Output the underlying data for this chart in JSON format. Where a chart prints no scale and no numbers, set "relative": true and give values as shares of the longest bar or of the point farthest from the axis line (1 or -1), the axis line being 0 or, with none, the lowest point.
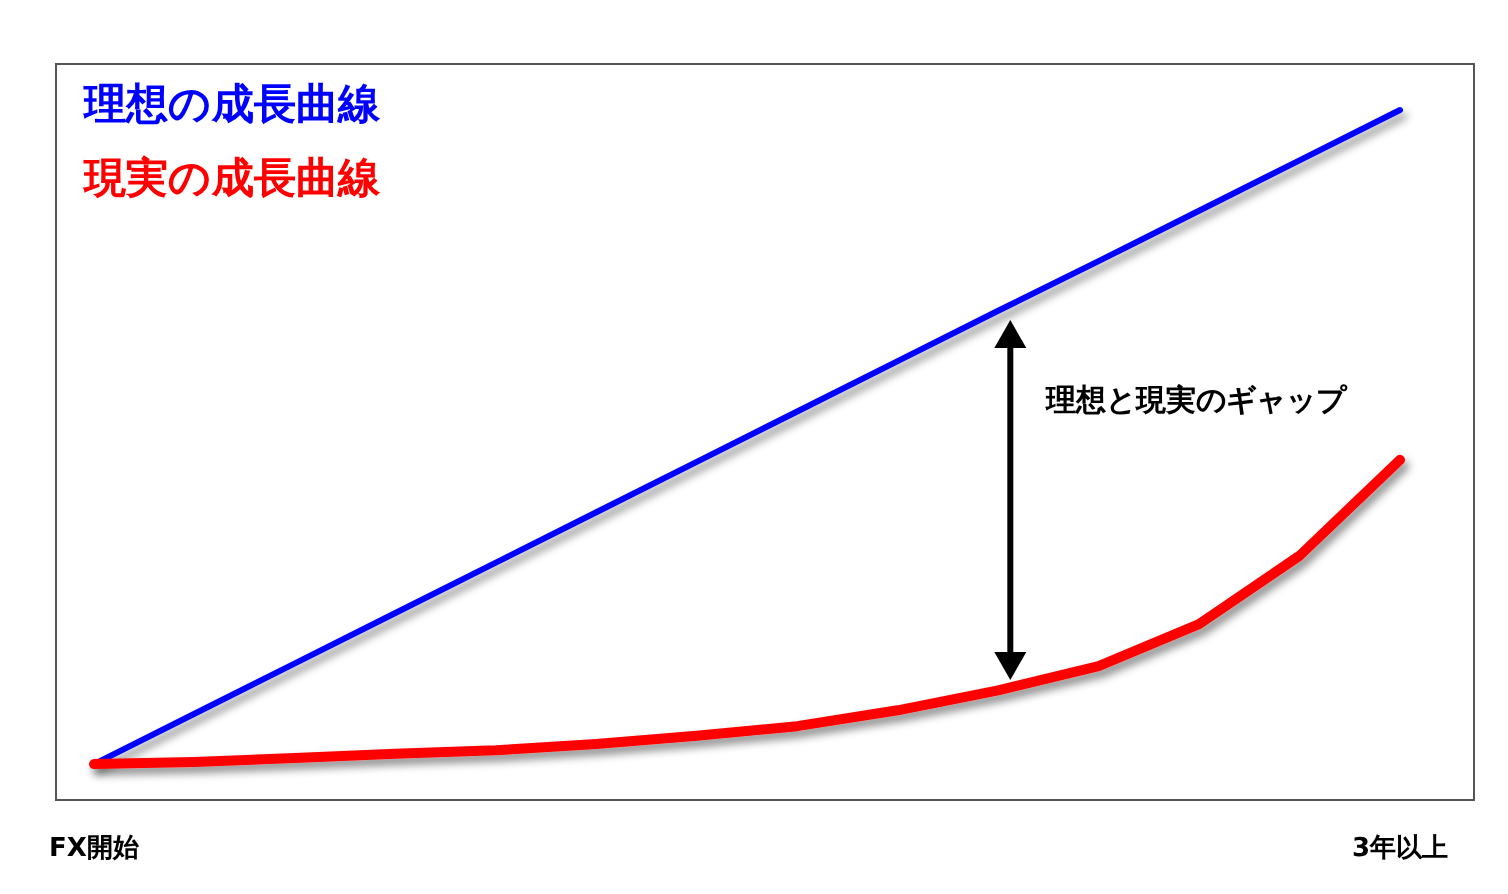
{
  "chart_data": {
    "type": "line",
    "relative": true,
    "categories": [
      "FX開始",
      null,
      null,
      null,
      null,
      null,
      null,
      null,
      null,
      null,
      null,
      null,
      null,
      "3年以上"
    ],
    "series": [
      {
        "name": "理想の成長曲線",
        "color": "#0000ff",
        "values": [
          0.052,
          0.125,
          0.198,
          0.271,
          0.344,
          0.417,
          0.49,
          0.563,
          0.636,
          0.709,
          0.781,
          0.854,
          0.927,
          1
        ]
      },
      {
        "name": "現実の成長曲線",
        "color": "#ff0000",
        "values": [
          0.052,
          0.055,
          0.061,
          0.067,
          0.072,
          0.081,
          0.093,
          0.107,
          0.13,
          0.159,
          0.194,
          0.255,
          0.354,
          0.493
        ]
      }
    ],
    "annotations": [
      "理想と現実のギャップ"
    ]
  }
}
